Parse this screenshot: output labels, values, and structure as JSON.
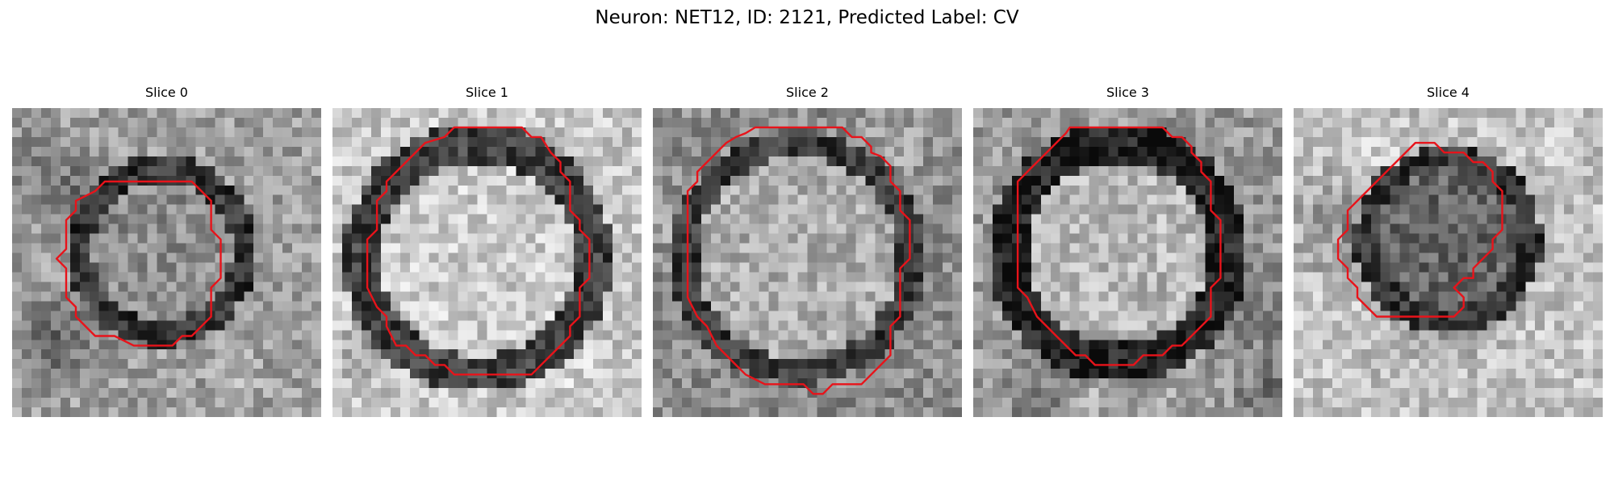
{
  "figure": {
    "title": "Neuron: NET12, ID: 2121, Predicted Label: CV"
  },
  "panels": [
    {
      "title": "Slice 0"
    },
    {
      "title": "Slice 1"
    },
    {
      "title": "Slice 2"
    },
    {
      "title": "Slice 3"
    },
    {
      "title": "Slice 4"
    }
  ],
  "colors": {
    "contour": "#e8131a",
    "background": "#ffffff"
  }
}
